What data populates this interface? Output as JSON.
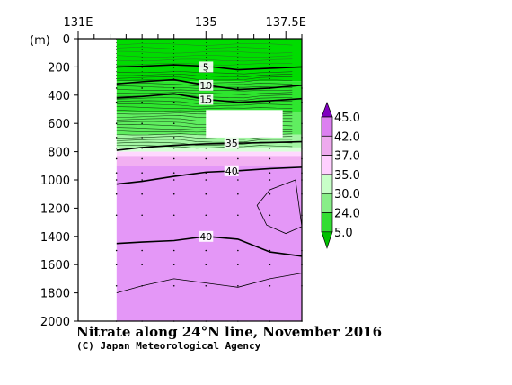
{
  "chart_data": {
    "type": "contour",
    "title": "Nitrate along 24°N line, November 2016",
    "credit": "(C) Japan Meteorological Agency",
    "x_axis": {
      "range": [
        131,
        138
      ],
      "tick_labels": [
        {
          "value": 131,
          "label": "131E"
        },
        {
          "value": 135,
          "label": "135"
        },
        {
          "value": 137.5,
          "label": "137.5E"
        }
      ],
      "minor_ticks": [
        131.5,
        132,
        132.5,
        133,
        133.5,
        134,
        134.5,
        135.5,
        136,
        136.5,
        137,
        138
      ]
    },
    "y_axis": {
      "unit_label": "(m)",
      "range": [
        0,
        2000
      ],
      "inverted": true,
      "ticks": [
        0,
        200,
        400,
        600,
        800,
        1000,
        1200,
        1400,
        1600,
        1800,
        2000
      ]
    },
    "data_region": {
      "x_start": 132.2,
      "x_end": 138.0
    },
    "missing_patch": {
      "x": [
        135.0,
        137.4
      ],
      "depth": [
        505,
        700
      ]
    },
    "stations_lon": [
      132.2,
      133.0,
      134.0,
      135.0,
      136.0,
      137.0,
      138.0
    ],
    "sample_depths": [
      350,
      450,
      600,
      700,
      775,
      850,
      950,
      1000,
      1100,
      1250,
      1500,
      1600,
      1750,
      2000
    ],
    "colorbar": {
      "labels": [
        "45.0",
        "42.0",
        "37.0",
        "35.0",
        "30.0",
        "24.0",
        "5.0"
      ],
      "colors": [
        "#8000c0",
        "#dc80f0",
        "#eeaaee",
        "#ffd0ff",
        "#c8ffc8",
        "#88ee88",
        "#33dd33",
        "#00c000"
      ]
    },
    "fill_bands": [
      {
        "depth": [
          0,
          300
        ],
        "color": "#00dc00"
      },
      {
        "depth": [
          300,
          520
        ],
        "color": "#2ee62e"
      },
      {
        "depth": [
          520,
          680
        ],
        "color": "#60ee60"
      },
      {
        "depth": [
          680,
          770
        ],
        "color": "#a4f6a4"
      },
      {
        "depth": [
          770,
          800
        ],
        "color": "#d8ffd8"
      },
      {
        "depth": [
          800,
          830
        ],
        "color": "#ffd8ff"
      },
      {
        "depth": [
          830,
          900
        ],
        "color": "#f2b0f2"
      },
      {
        "depth": [
          900,
          2000
        ],
        "color": "#e497f7"
      }
    ],
    "contours": [
      {
        "level": 5,
        "label": "5",
        "label_at": {
          "x": 135.0,
          "depth": 200
        },
        "bold": true,
        "points": [
          [
            132.2,
            200
          ],
          [
            133,
            195
          ],
          [
            134,
            185
          ],
          [
            135,
            195
          ],
          [
            136,
            220
          ],
          [
            137,
            210
          ],
          [
            138,
            200
          ]
        ]
      },
      {
        "level": 10,
        "label": "10",
        "label_at": {
          "x": 135.0,
          "depth": 330
        },
        "bold": true,
        "points": [
          [
            132.2,
            320
          ],
          [
            133,
            305
          ],
          [
            134,
            290
          ],
          [
            135,
            330
          ],
          [
            136,
            360
          ],
          [
            137,
            350
          ],
          [
            138,
            330
          ]
        ]
      },
      {
        "level": 15,
        "label": "15",
        "label_at": {
          "x": 135.0,
          "depth": 430
        },
        "bold": true,
        "points": [
          [
            132.2,
            420
          ],
          [
            133,
            410
          ],
          [
            134,
            390
          ],
          [
            135,
            430
          ],
          [
            136,
            450
          ],
          [
            137,
            440
          ],
          [
            138,
            425
          ]
        ]
      },
      {
        "level": 35,
        "label": "35",
        "label_at": {
          "x": 135.8,
          "depth": 740
        },
        "bold": true,
        "points": [
          [
            132.2,
            790
          ],
          [
            133,
            770
          ],
          [
            134,
            755
          ],
          [
            135,
            745
          ],
          [
            136,
            740
          ],
          [
            137,
            735
          ],
          [
            138,
            730
          ]
        ]
      },
      {
        "level": 40,
        "label": "40",
        "label_at": {
          "x": 135.8,
          "depth": 935
        },
        "bold": true,
        "points": [
          [
            132.2,
            1030
          ],
          [
            133,
            1010
          ],
          [
            134,
            975
          ],
          [
            135,
            945
          ],
          [
            136,
            935
          ],
          [
            137,
            920
          ],
          [
            138,
            910
          ]
        ]
      },
      {
        "level": 40,
        "label": "40",
        "label_at": {
          "x": 135.0,
          "depth": 1400
        },
        "bold": true,
        "points": [
          [
            132.2,
            1450
          ],
          [
            133,
            1440
          ],
          [
            134,
            1430
          ],
          [
            135,
            1400
          ],
          [
            136,
            1420
          ],
          [
            137,
            1510
          ],
          [
            138,
            1540
          ]
        ]
      },
      {
        "level": 42,
        "label": "",
        "bold": false,
        "points": [
          [
            132.2,
            1800
          ],
          [
            133,
            1750
          ],
          [
            134,
            1700
          ],
          [
            135,
            1730
          ],
          [
            136,
            1760
          ],
          [
            137,
            1700
          ],
          [
            138,
            1660
          ]
        ]
      },
      {
        "level": 42,
        "label": "",
        "closed": true,
        "bold": false,
        "points": [
          [
            137.8,
            1000
          ],
          [
            137.0,
            1070
          ],
          [
            136.6,
            1180
          ],
          [
            136.9,
            1320
          ],
          [
            137.5,
            1380
          ],
          [
            138,
            1330
          ]
        ]
      }
    ]
  }
}
